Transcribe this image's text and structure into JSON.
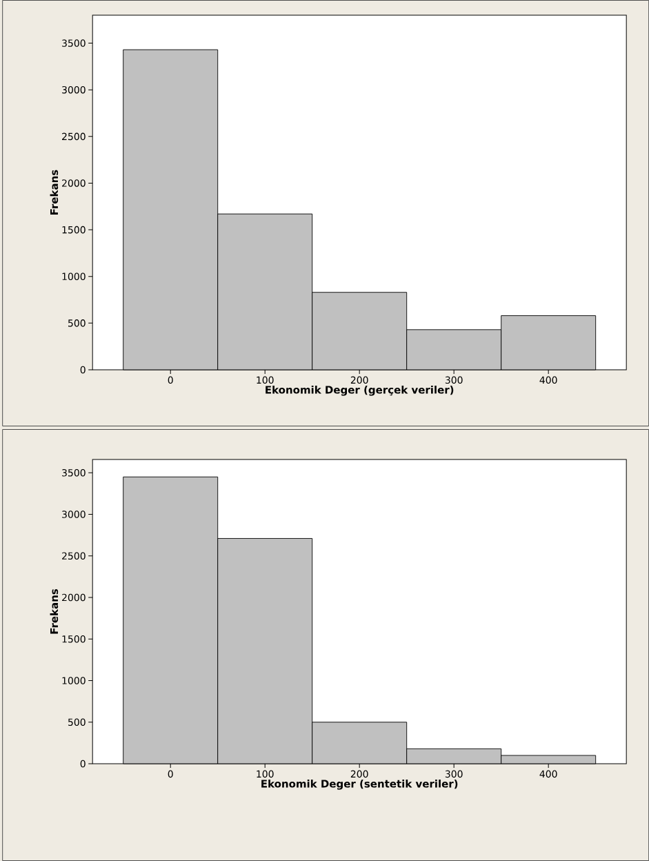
{
  "chart_data": [
    {
      "type": "histogram",
      "xlabel": "Ekonomik Deger (gerçek veriler)",
      "ylabel": "Frekans",
      "bins": [
        -50,
        50,
        150,
        250,
        350,
        450
      ],
      "values": [
        3430,
        1670,
        830,
        430,
        580
      ],
      "color": "#c0c0c0",
      "xlim": [
        -82.5,
        482.5
      ],
      "ylim": [
        0,
        3800
      ],
      "xticks": [
        0,
        100,
        200,
        300,
        400
      ],
      "yticks": [
        0,
        500,
        1000,
        1500,
        2000,
        2500,
        3000,
        3500
      ],
      "grid": false
    },
    {
      "type": "histogram",
      "xlabel": "Ekonomik Deger (sentetik veriler)",
      "ylabel": "Frekans",
      "bins": [
        -50,
        50,
        150,
        250,
        350,
        450
      ],
      "values": [
        3450,
        2710,
        500,
        180,
        100
      ],
      "color": "#c0c0c0",
      "xlim": [
        -82.5,
        482.5
      ],
      "ylim": [
        0,
        3660
      ],
      "xticks": [
        0,
        100,
        200,
        300,
        400
      ],
      "yticks": [
        0,
        500,
        1000,
        1500,
        2000,
        2500,
        3000,
        3500
      ],
      "grid": false
    }
  ]
}
